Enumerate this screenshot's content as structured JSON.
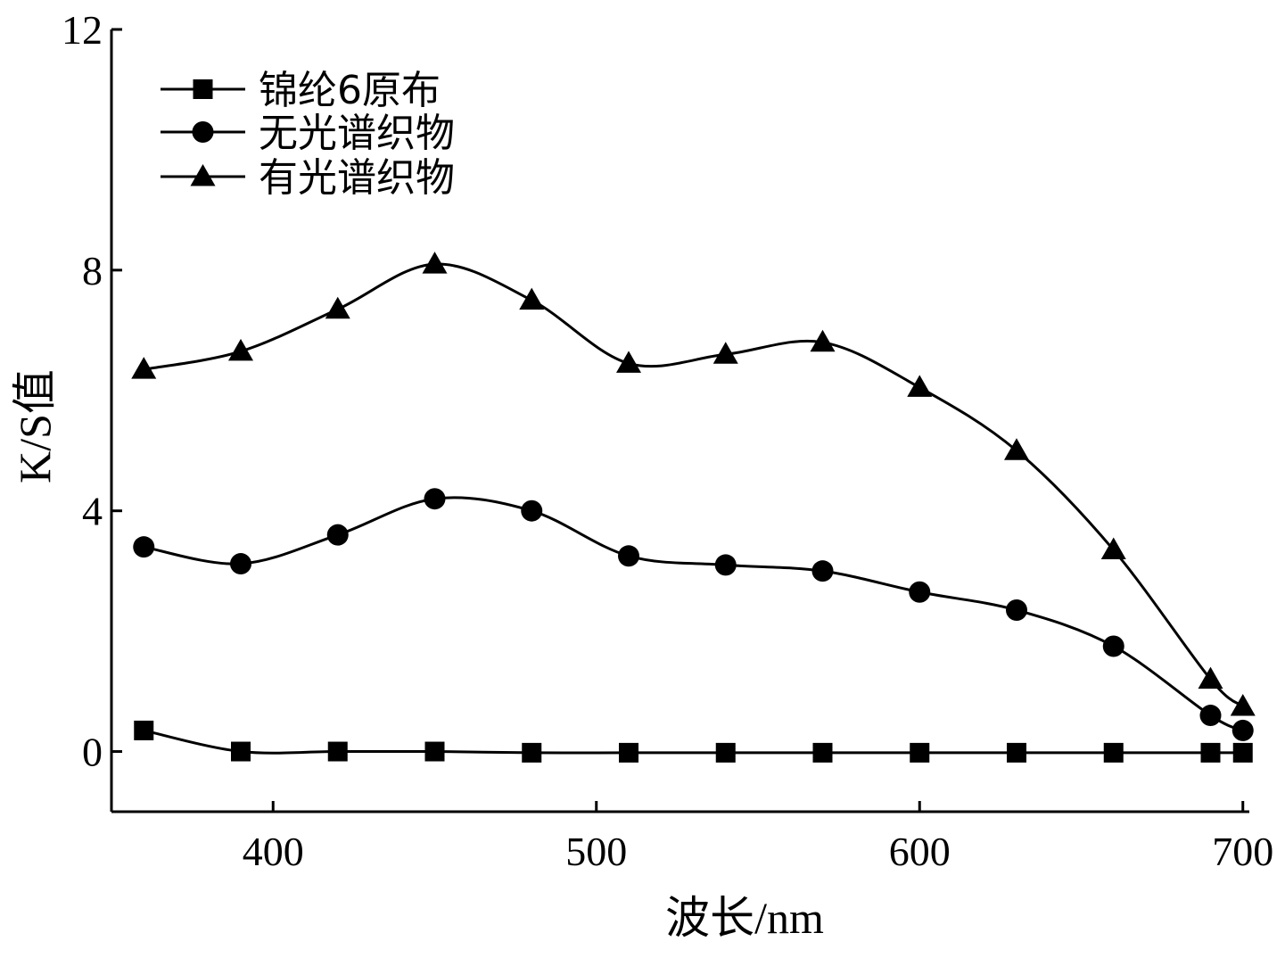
{
  "chart_data": {
    "type": "line",
    "title": "",
    "xlabel": "波长/nm",
    "ylabel": "K/S值",
    "xlim": [
      350,
      702
    ],
    "ylim": [
      -1,
      12
    ],
    "xticks": [
      400,
      500,
      600,
      700
    ],
    "yticks": [
      0,
      4,
      8,
      12
    ],
    "xtick_labels": [
      "400",
      "500",
      "600",
      "700"
    ],
    "ytick_labels": [
      "0",
      "4",
      "8",
      "12"
    ],
    "grid": false,
    "legend_position": "top-left",
    "series": [
      {
        "name": "锦纶6原布",
        "marker": "square",
        "x": [
          360,
          390,
          420,
          450,
          480,
          510,
          540,
          570,
          600,
          630,
          660,
          690,
          700
        ],
        "values": [
          0.35,
          0.0,
          0.0,
          0.0,
          -0.02,
          -0.02,
          -0.02,
          -0.02,
          -0.02,
          -0.02,
          -0.02,
          -0.02,
          -0.02
        ]
      },
      {
        "name": "无光谱织物",
        "marker": "circle",
        "x": [
          360,
          390,
          420,
          450,
          480,
          510,
          540,
          570,
          600,
          630,
          660,
          690,
          700
        ],
        "values": [
          3.4,
          3.12,
          3.6,
          4.2,
          4.0,
          3.25,
          3.1,
          3.0,
          2.65,
          2.35,
          1.75,
          0.6,
          0.35
        ]
      },
      {
        "name": "有光谱织物",
        "marker": "triangle",
        "x": [
          360,
          390,
          420,
          450,
          480,
          510,
          540,
          570,
          600,
          630,
          660,
          690,
          700
        ],
        "values": [
          6.35,
          6.65,
          7.35,
          8.1,
          7.5,
          6.45,
          6.6,
          6.8,
          6.05,
          5.0,
          3.35,
          1.2,
          0.75
        ]
      }
    ]
  }
}
